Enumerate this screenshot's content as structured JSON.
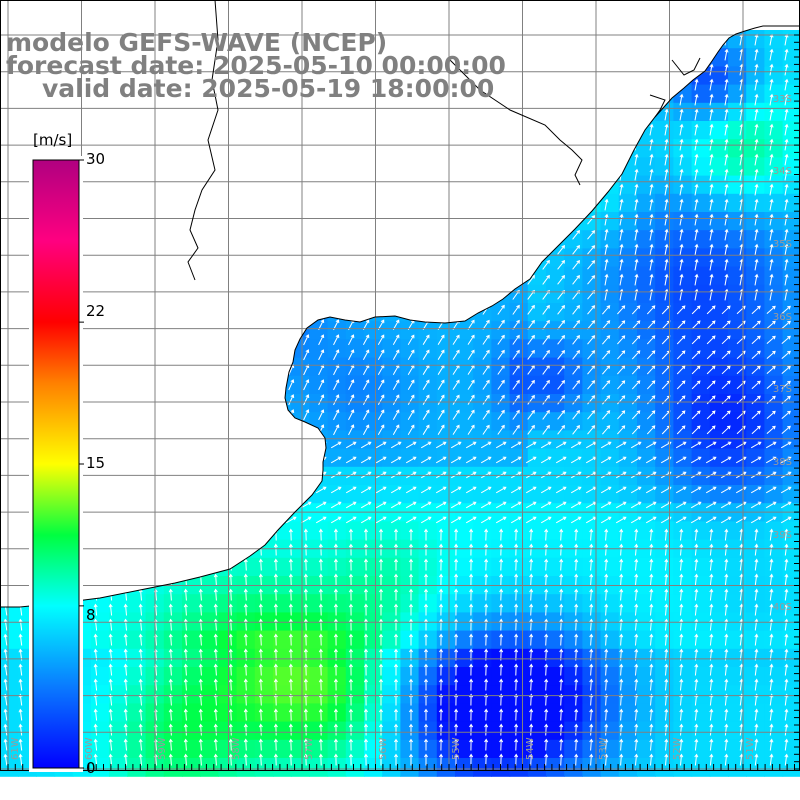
{
  "title": {
    "line1": "modelo GEFS-WAVE (NCEP)",
    "line2": "forecast date: 2025-05-10 00:00:00",
    "line3": "valid date: 2025-05-19 18:00:00"
  },
  "colorbar": {
    "unit": "[m/s]",
    "ticks": [
      "30",
      "22",
      "15",
      "8",
      "0"
    ],
    "tick_values": [
      30,
      22,
      15,
      8,
      0
    ],
    "min": 0,
    "max": 30,
    "stops": [
      {
        "v": 0,
        "c": "#0000ff"
      },
      {
        "v": 4,
        "c": "#0a7aff"
      },
      {
        "v": 8,
        "c": "#00ffff"
      },
      {
        "v": 11.5,
        "c": "#00ff40"
      },
      {
        "v": 15,
        "c": "#ffff00"
      },
      {
        "v": 19,
        "c": "#ff8000"
      },
      {
        "v": 22,
        "c": "#ff0000"
      },
      {
        "v": 26,
        "c": "#ff0080"
      },
      {
        "v": 30,
        "c": "#b00080"
      }
    ]
  },
  "map": {
    "land_color": "#ffffff",
    "grid_color": "#808080",
    "coast_color": "#000000",
    "arrow_color": "#ffffff",
    "lat_labels": [
      "33S",
      "34S",
      "35S",
      "36S",
      "37S",
      "38S",
      "39S",
      "40S"
    ],
    "lon_labels": [
      "61W",
      "60W",
      "59W",
      "58W",
      "57W",
      "56W",
      "55W",
      "54W",
      "53W",
      "52W",
      "51W"
    ]
  }
}
